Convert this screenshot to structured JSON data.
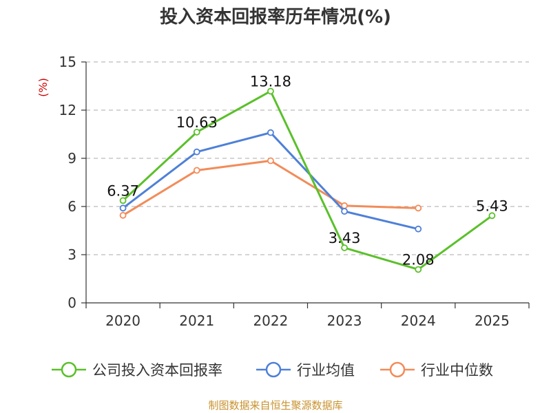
{
  "chart_data": {
    "type": "line",
    "title": "投入资本回报率历年情况(%)",
    "ylabel": "(%)",
    "ylim": [
      0,
      15
    ],
    "yticks": [
      0,
      3,
      6,
      9,
      12,
      15
    ],
    "grid": true,
    "legend_position": "bottom",
    "categories": [
      "2020",
      "2021",
      "2022",
      "2023",
      "2024",
      "2025"
    ],
    "series": [
      {
        "name": "公司投入资本回报率",
        "color": "#5ac02a",
        "values": [
          6.37,
          10.63,
          13.18,
          3.43,
          2.08,
          5.43
        ],
        "labels": [
          "6.37",
          "10.63",
          "13.18",
          "3.43",
          "2.08",
          "5.43"
        ]
      },
      {
        "name": "行业均值",
        "color": "#4e80d8",
        "values": [
          5.9,
          9.4,
          10.6,
          5.7,
          4.6,
          null
        ]
      },
      {
        "name": "行业中位数",
        "color": "#f28c5a",
        "values": [
          5.45,
          8.25,
          8.85,
          6.05,
          5.9,
          null
        ]
      }
    ]
  },
  "source": "制图数据来自恒生聚源数据库"
}
